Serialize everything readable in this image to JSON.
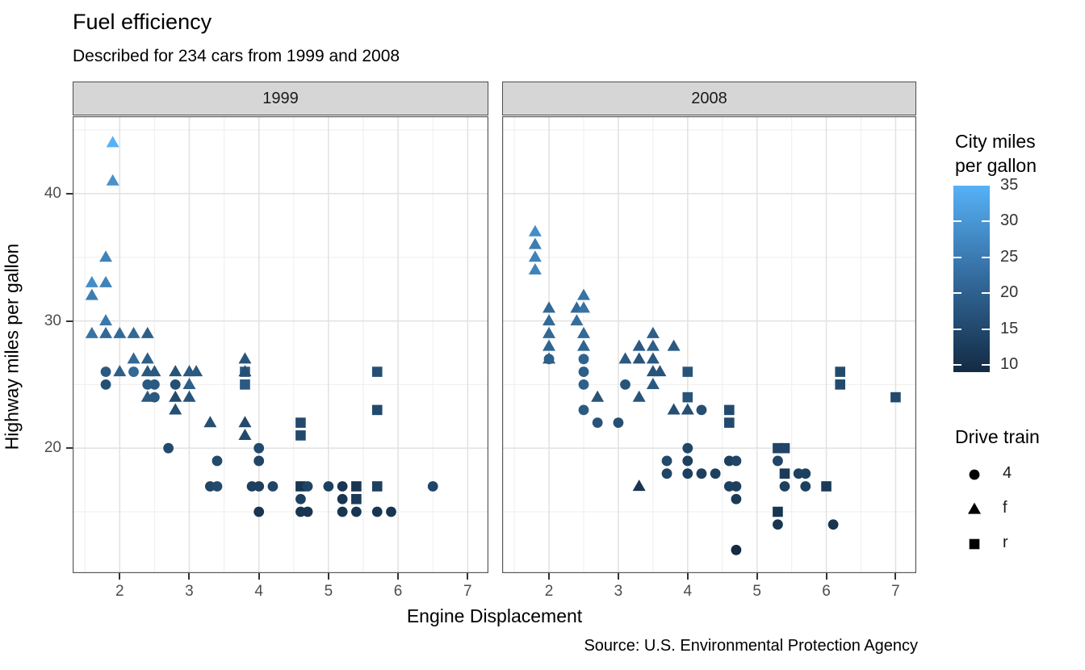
{
  "title": "Fuel efficiency",
  "subtitle": "Described for 234 cars from 1999 and 2008",
  "caption": "Source: U.S. Environmental Protection Agency",
  "x_axis": {
    "title": "Engine Displacement",
    "ticks": [
      2,
      3,
      4,
      5,
      6,
      7
    ]
  },
  "y_axis": {
    "title": "Highway miles per gallon",
    "ticks": [
      20,
      30,
      40
    ]
  },
  "legend_color": {
    "title_lines": [
      "City miles",
      "per gallon"
    ],
    "ticks": [
      35,
      30,
      25,
      20,
      15,
      10
    ],
    "domain": [
      9,
      35
    ],
    "low_color": "#132B43",
    "high_color": "#56B1F7"
  },
  "legend_shape": {
    "title": "Drive train",
    "items": [
      {
        "shape": "circle",
        "label": "4"
      },
      {
        "shape": "triangle",
        "label": "f"
      },
      {
        "shape": "square",
        "label": "r"
      }
    ]
  },
  "chart_data": {
    "type": "scatter",
    "x_label": "Engine Displacement",
    "y_label": "Highway miles per gallon",
    "x_range": [
      1.324,
      7.298
    ],
    "y_range": [
      10.18,
      46.08
    ],
    "x_major": [
      2,
      3,
      4,
      5,
      6,
      7
    ],
    "x_minor": [
      1.5,
      2.5,
      3.5,
      4.5,
      5.5,
      6.5,
      7.5
    ],
    "y_major": [
      20,
      30,
      40
    ],
    "y_minor": [
      15,
      25,
      35,
      45
    ],
    "point_fields": [
      "displ",
      "hwy",
      "drv",
      "cty"
    ],
    "facets": [
      {
        "label": "1999",
        "points": [
          [
            1.9,
            44,
            "f",
            35
          ],
          [
            1.9,
            41,
            "f",
            29
          ],
          [
            1.8,
            35,
            "f",
            26
          ],
          [
            1.6,
            33,
            "f",
            28
          ],
          [
            1.8,
            33,
            "f",
            26
          ],
          [
            1.6,
            32,
            "f",
            25
          ],
          [
            1.8,
            30,
            "f",
            24
          ],
          [
            1.6,
            29,
            "f",
            23
          ],
          [
            1.8,
            29,
            "f",
            21
          ],
          [
            2.0,
            29,
            "f",
            21
          ],
          [
            2.2,
            29,
            "f",
            21
          ],
          [
            2.4,
            29,
            "f",
            19
          ],
          [
            2.2,
            27,
            "f",
            21
          ],
          [
            2.4,
            27,
            "f",
            19
          ],
          [
            3.8,
            27,
            "f",
            17
          ],
          [
            1.8,
            26,
            "4",
            18
          ],
          [
            2.0,
            26,
            "f",
            19
          ],
          [
            2.2,
            26,
            "4",
            21
          ],
          [
            2.4,
            26,
            "f",
            18
          ],
          [
            2.5,
            26,
            "f",
            18
          ],
          [
            2.8,
            26,
            "f",
            17
          ],
          [
            3.0,
            26,
            "f",
            18
          ],
          [
            3.1,
            26,
            "f",
            18
          ],
          [
            3.8,
            26,
            "r",
            18
          ],
          [
            3.8,
            26,
            "f",
            16
          ],
          [
            5.7,
            26,
            "r",
            16
          ],
          [
            1.8,
            25,
            "4",
            16
          ],
          [
            2.4,
            25,
            "4",
            18
          ],
          [
            2.5,
            25,
            "4",
            18
          ],
          [
            2.8,
            25,
            "4",
            16
          ],
          [
            3.0,
            25,
            "f",
            19
          ],
          [
            3.8,
            25,
            "r",
            18
          ],
          [
            2.4,
            24,
            "f",
            18
          ],
          [
            2.5,
            24,
            "4",
            18
          ],
          [
            2.8,
            24,
            "f",
            15
          ],
          [
            3.0,
            24,
            "f",
            17
          ],
          [
            2.8,
            23,
            "f",
            16
          ],
          [
            5.7,
            23,
            "r",
            15
          ],
          [
            3.3,
            22,
            "f",
            16
          ],
          [
            3.8,
            22,
            "f",
            15
          ],
          [
            4.6,
            22,
            "r",
            15
          ],
          [
            3.8,
            21,
            "f",
            15
          ],
          [
            4.6,
            21,
            "r",
            15
          ],
          [
            2.7,
            20,
            "4",
            15
          ],
          [
            4.0,
            20,
            "4",
            15
          ],
          [
            3.4,
            19,
            "4",
            15
          ],
          [
            4.0,
            19,
            "4",
            14
          ],
          [
            3.3,
            17,
            "4",
            14
          ],
          [
            3.4,
            17,
            "4",
            15
          ],
          [
            3.9,
            17,
            "4",
            13
          ],
          [
            4.0,
            17,
            "4",
            13
          ],
          [
            4.2,
            17,
            "4",
            14
          ],
          [
            4.6,
            17,
            "r",
            11
          ],
          [
            4.7,
            17,
            "4",
            14
          ],
          [
            5.0,
            17,
            "4",
            13
          ],
          [
            5.2,
            17,
            "4",
            11
          ],
          [
            5.4,
            17,
            "r",
            11
          ],
          [
            5.7,
            17,
            "r",
            13
          ],
          [
            6.5,
            17,
            "4",
            14
          ],
          [
            4.6,
            16,
            "4",
            13
          ],
          [
            5.2,
            16,
            "4",
            11
          ],
          [
            5.4,
            16,
            "r",
            12
          ],
          [
            4.0,
            15,
            "4",
            11
          ],
          [
            4.6,
            15,
            "4",
            11
          ],
          [
            4.7,
            15,
            "4",
            11
          ],
          [
            5.2,
            15,
            "4",
            11
          ],
          [
            5.4,
            15,
            "4",
            11
          ],
          [
            5.7,
            15,
            "4",
            11
          ],
          [
            5.9,
            15,
            "4",
            11
          ]
        ]
      },
      {
        "label": "2008",
        "points": [
          [
            1.8,
            37,
            "f",
            28
          ],
          [
            1.8,
            36,
            "f",
            25
          ],
          [
            1.8,
            35,
            "f",
            26
          ],
          [
            1.8,
            34,
            "f",
            26
          ],
          [
            2.0,
            31,
            "f",
            21
          ],
          [
            2.0,
            30,
            "f",
            21
          ],
          [
            2.0,
            29,
            "f",
            21
          ],
          [
            2.0,
            28,
            "f",
            20
          ],
          [
            2.0,
            27,
            "f",
            19
          ],
          [
            2.0,
            27,
            "4",
            19
          ],
          [
            2.5,
            32,
            "f",
            23
          ],
          [
            2.4,
            31,
            "f",
            21
          ],
          [
            2.5,
            31,
            "f",
            23
          ],
          [
            2.4,
            30,
            "f",
            22
          ],
          [
            2.5,
            29,
            "f",
            21
          ],
          [
            2.5,
            28,
            "f",
            20
          ],
          [
            2.5,
            27,
            "4",
            20
          ],
          [
            2.5,
            26,
            "4",
            19
          ],
          [
            2.5,
            25,
            "4",
            19
          ],
          [
            2.7,
            24,
            "f",
            17
          ],
          [
            2.5,
            23,
            "4",
            18
          ],
          [
            2.7,
            22,
            "4",
            17
          ],
          [
            3.0,
            22,
            "4",
            16
          ],
          [
            3.1,
            25,
            "4",
            17
          ],
          [
            3.5,
            25,
            "f",
            18
          ],
          [
            3.3,
            24,
            "f",
            17
          ],
          [
            3.1,
            27,
            "f",
            18
          ],
          [
            3.3,
            27,
            "f",
            17
          ],
          [
            3.5,
            27,
            "f",
            18
          ],
          [
            3.3,
            28,
            "f",
            18
          ],
          [
            3.5,
            28,
            "f",
            19
          ],
          [
            3.8,
            28,
            "f",
            18
          ],
          [
            3.5,
            29,
            "f",
            19
          ],
          [
            3.5,
            26,
            "f",
            17
          ],
          [
            3.6,
            26,
            "f",
            17
          ],
          [
            4.0,
            26,
            "r",
            17
          ],
          [
            4.0,
            24,
            "r",
            17
          ],
          [
            3.8,
            23,
            "f",
            16
          ],
          [
            4.0,
            23,
            "f",
            16
          ],
          [
            4.2,
            23,
            "4",
            16
          ],
          [
            4.6,
            23,
            "r",
            15
          ],
          [
            4.6,
            22,
            "r",
            15
          ],
          [
            4.0,
            20,
            "4",
            14
          ],
          [
            3.7,
            19,
            "4",
            15
          ],
          [
            4.0,
            19,
            "4",
            13
          ],
          [
            4.6,
            19,
            "4",
            13
          ],
          [
            4.7,
            19,
            "4",
            14
          ],
          [
            5.3,
            19,
            "4",
            14
          ],
          [
            3.7,
            18,
            "4",
            14
          ],
          [
            4.0,
            18,
            "4",
            13
          ],
          [
            4.2,
            18,
            "4",
            13
          ],
          [
            4.4,
            18,
            "4",
            13
          ],
          [
            5.4,
            18,
            "r",
            12
          ],
          [
            5.6,
            18,
            "4",
            13
          ],
          [
            5.7,
            18,
            "4",
            13
          ],
          [
            3.3,
            17,
            "f",
            11
          ],
          [
            4.6,
            17,
            "4",
            13
          ],
          [
            4.7,
            17,
            "4",
            13
          ],
          [
            5.4,
            17,
            "4",
            13
          ],
          [
            5.7,
            17,
            "4",
            13
          ],
          [
            6.0,
            17,
            "r",
            12
          ],
          [
            4.7,
            16,
            "4",
            12
          ],
          [
            5.3,
            20,
            "r",
            14
          ],
          [
            5.4,
            20,
            "r",
            14
          ],
          [
            5.3,
            15,
            "r",
            11
          ],
          [
            5.3,
            14,
            "4",
            11
          ],
          [
            6.1,
            14,
            "4",
            11
          ],
          [
            4.7,
            12,
            "4",
            9
          ],
          [
            6.2,
            26,
            "r",
            15
          ],
          [
            6.2,
            25,
            "r",
            15
          ],
          [
            7.0,
            24,
            "r",
            15
          ]
        ]
      }
    ]
  }
}
